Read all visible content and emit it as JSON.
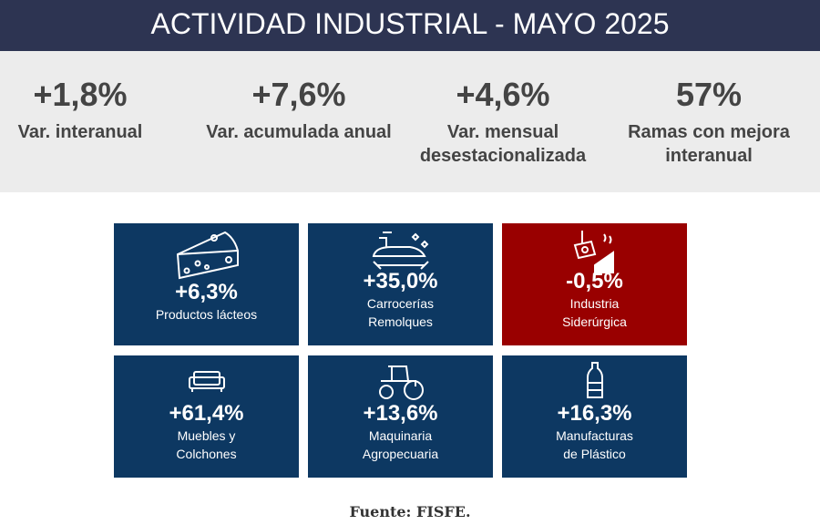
{
  "title": "ACTIVIDAD INDUSTRIAL - MAYO 2025",
  "kpis": [
    {
      "value": "+1,8%",
      "label": "Var. interanual"
    },
    {
      "value": "+7,6%",
      "label": "Var. acumulada anual"
    },
    {
      "value": "+4,6%",
      "label": "Var. mensual desestacionalizada"
    },
    {
      "value": "57%",
      "label": "Ramas con mejora interanual"
    }
  ],
  "tiles": [
    {
      "value": "+6,3%",
      "label1": "Productos lácteos",
      "label2": "",
      "icon": "cheese-icon",
      "color": "#0d3862"
    },
    {
      "value": "+35,0%",
      "label1": "Carrocerías",
      "label2": "Remolques",
      "icon": "car-repair-icon",
      "color": "#0d3862"
    },
    {
      "value": "-0,5%",
      "label1": "Industria",
      "label2": "Siderúrgica",
      "icon": "steel-icon",
      "color": "#990000"
    },
    {
      "value": "+61,4%",
      "label1": "Muebles y",
      "label2": "Colchones",
      "icon": "sofa-icon",
      "color": "#0d3862"
    },
    {
      "value": "+13,6%",
      "label1": "Maquinaria",
      "label2": "Agropecuaria",
      "icon": "tractor-icon",
      "color": "#0d3862"
    },
    {
      "value": "+16,3%",
      "label1": "Manufacturas",
      "label2": "de Plástico",
      "icon": "bottle-icon",
      "color": "#0d3862"
    }
  ],
  "source": "Fuente: FISFE."
}
